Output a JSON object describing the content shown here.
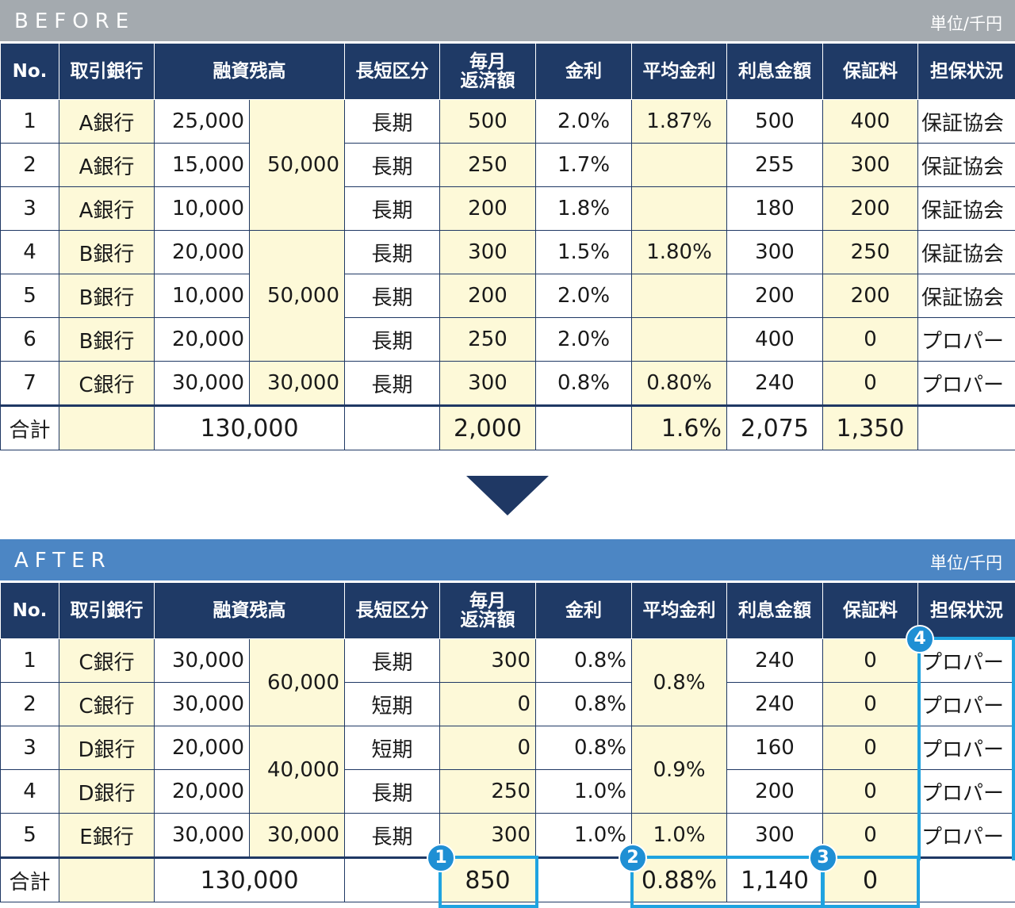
{
  "before": {
    "title": "BEFORE",
    "unit": "単位/千円",
    "headers": {
      "no": "No.",
      "bank": "取引銀行",
      "balance": "融資残高",
      "term": "長短区分",
      "monthly_1": "毎月",
      "monthly_2": "返済額",
      "rate": "金利",
      "avg_rate": "平均金利",
      "interest": "利息金額",
      "fee": "保証料",
      "collateral": "担保状況"
    },
    "rows": [
      {
        "no": "1",
        "bank": "A銀行",
        "balance": "25,000",
        "term": "長期",
        "monthly": "500",
        "rate": "2.0%",
        "interest": "500",
        "fee": "400",
        "collateral": "保証協会"
      },
      {
        "no": "2",
        "bank": "A銀行",
        "balance": "15,000",
        "term": "長期",
        "monthly": "250",
        "rate": "1.7%",
        "interest": "255",
        "fee": "300",
        "collateral": "保証協会"
      },
      {
        "no": "3",
        "bank": "A銀行",
        "balance": "10,000",
        "term": "長期",
        "monthly": "200",
        "rate": "1.8%",
        "interest": "180",
        "fee": "200",
        "collateral": "保証協会"
      },
      {
        "no": "4",
        "bank": "B銀行",
        "balance": "20,000",
        "term": "長期",
        "monthly": "300",
        "rate": "1.5%",
        "interest": "300",
        "fee": "250",
        "collateral": "保証協会"
      },
      {
        "no": "5",
        "bank": "B銀行",
        "balance": "10,000",
        "term": "長期",
        "monthly": "200",
        "rate": "2.0%",
        "interest": "200",
        "fee": "200",
        "collateral": "保証協会"
      },
      {
        "no": "6",
        "bank": "B銀行",
        "balance": "20,000",
        "term": "長期",
        "monthly": "250",
        "rate": "2.0%",
        "interest": "400",
        "fee": "0",
        "collateral": "プロパー"
      },
      {
        "no": "7",
        "bank": "C銀行",
        "balance": "30,000",
        "term": "長期",
        "monthly": "300",
        "rate": "0.8%",
        "interest": "240",
        "fee": "0",
        "collateral": "プロパー"
      }
    ],
    "groups": {
      "sub_a": "50,000",
      "sub_b": "50,000",
      "sub_c": "30,000",
      "avg_a": "1.87%",
      "avg_b": "1.80%",
      "avg_c": "0.80%"
    },
    "total": {
      "label": "合計",
      "balance": "130,000",
      "monthly": "2,000",
      "avg_rate": "1.6%",
      "interest": "2,075",
      "fee": "1,350"
    }
  },
  "after": {
    "title": "AFTER",
    "unit": "単位/千円",
    "headers": {
      "no": "No.",
      "bank": "取引銀行",
      "balance": "融資残高",
      "term": "長短区分",
      "monthly_1": "毎月",
      "monthly_2": "返済額",
      "rate": "金利",
      "avg_rate": "平均金利",
      "interest": "利息金額",
      "fee": "保証料",
      "collateral": "担保状況"
    },
    "rows": [
      {
        "no": "1",
        "bank": "C銀行",
        "balance": "30,000",
        "term": "長期",
        "monthly": "300",
        "rate": "0.8%",
        "interest": "240",
        "fee": "0",
        "collateral": "プロパー"
      },
      {
        "no": "2",
        "bank": "C銀行",
        "balance": "30,000",
        "term": "短期",
        "monthly": "0",
        "rate": "0.8%",
        "interest": "240",
        "fee": "0",
        "collateral": "プロパー"
      },
      {
        "no": "3",
        "bank": "D銀行",
        "balance": "20,000",
        "term": "短期",
        "monthly": "0",
        "rate": "0.8%",
        "interest": "160",
        "fee": "0",
        "collateral": "プロパー"
      },
      {
        "no": "4",
        "bank": "D銀行",
        "balance": "20,000",
        "term": "長期",
        "monthly": "250",
        "rate": "1.0%",
        "interest": "200",
        "fee": "0",
        "collateral": "プロパー"
      },
      {
        "no": "5",
        "bank": "E銀行",
        "balance": "30,000",
        "term": "長期",
        "monthly": "300",
        "rate": "1.0%",
        "interest": "300",
        "fee": "0",
        "collateral": "プロパー"
      }
    ],
    "groups": {
      "sub_c": "60,000",
      "sub_d": "40,000",
      "sub_e": "30,000",
      "avg_c": "0.8%",
      "avg_d": "0.9%",
      "avg_e": "1.0%"
    },
    "total": {
      "label": "合計",
      "balance": "130,000",
      "monthly": "850",
      "avg_rate": "0.88%",
      "interest": "1,140",
      "fee": "0"
    }
  },
  "badges": [
    "1",
    "2",
    "3",
    "4"
  ],
  "colors": {
    "header_bg": "#1f3a66",
    "before_bar": "#a4aaaf",
    "after_bar": "#4c86c4",
    "highlight": "#fdf9d8",
    "callout": "#1fa3e0"
  }
}
